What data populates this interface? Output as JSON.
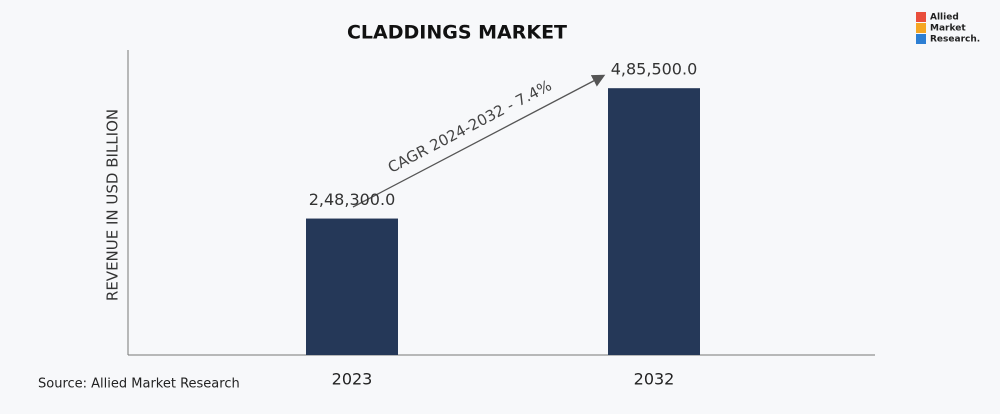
{
  "chart_data": {
    "type": "bar",
    "title": "CLADDINGS MARKET",
    "y_label": "REVENUE IN USD BILLION",
    "categories": [
      "2023",
      "2032"
    ],
    "values": [
      248300,
      485500
    ],
    "value_labels": [
      "2,48,300.0",
      "4,85,500.0"
    ],
    "color": "#253858",
    "ylim": [
      0,
      555000
    ],
    "annotation": "CAGR 2024-2032 - 7.4%",
    "source": "Source: Allied Market Research",
    "logo": [
      "Allied",
      "Market",
      "Research."
    ]
  }
}
